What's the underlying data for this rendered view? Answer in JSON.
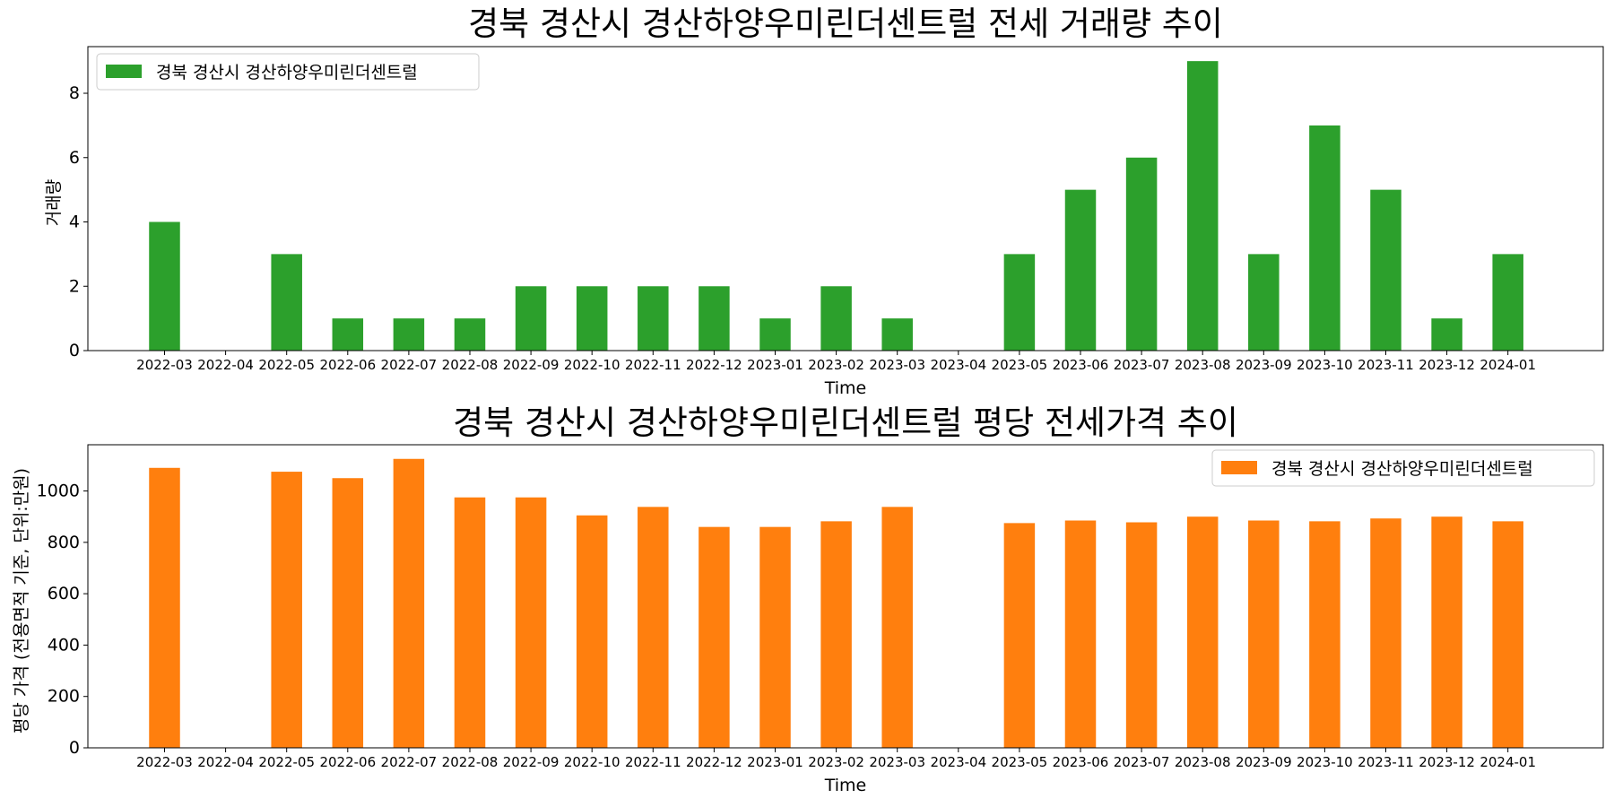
{
  "chart_data": [
    {
      "type": "bar",
      "title": "경북 경산시 경산하양우미린더센트럴 전세 거래량 추이",
      "xlabel": "Time",
      "ylabel": "거래량",
      "categories": [
        "2022-03",
        "2022-04",
        "2022-05",
        "2022-06",
        "2022-07",
        "2022-08",
        "2022-09",
        "2022-10",
        "2022-11",
        "2022-12",
        "2023-01",
        "2023-02",
        "2023-03",
        "2023-04",
        "2023-05",
        "2023-06",
        "2023-07",
        "2023-08",
        "2023-09",
        "2023-10",
        "2023-11",
        "2023-12",
        "2024-01"
      ],
      "series": [
        {
          "name": "경북 경산시 경산하양우미린더센트럴",
          "color": "#2ca02c",
          "values": [
            4,
            0,
            3,
            1,
            1,
            1,
            2,
            2,
            2,
            2,
            1,
            2,
            1,
            0,
            3,
            5,
            6,
            9,
            3,
            7,
            5,
            1,
            3
          ]
        }
      ],
      "ylim": [
        0,
        9.45
      ],
      "yticks": [
        0,
        2,
        4,
        6,
        8
      ],
      "grid": false,
      "legend_position": "upper-left"
    },
    {
      "type": "bar",
      "title": "경북 경산시 경산하양우미린더센트럴 평당 전세가격 추이",
      "xlabel": "Time",
      "ylabel": "평당 가격 (전용면적 기준, 단위:만원)",
      "categories": [
        "2022-03",
        "2022-04",
        "2022-05",
        "2022-06",
        "2022-07",
        "2022-08",
        "2022-09",
        "2022-10",
        "2022-11",
        "2022-12",
        "2023-01",
        "2023-02",
        "2023-03",
        "2023-04",
        "2023-05",
        "2023-06",
        "2023-07",
        "2023-08",
        "2023-09",
        "2023-10",
        "2023-11",
        "2023-12",
        "2024-01"
      ],
      "series": [
        {
          "name": "경북 경산시 경산하양우미린더센트럴",
          "color": "#ff7f0e",
          "values": [
            1090,
            0,
            1075,
            1050,
            1125,
            975,
            975,
            905,
            938,
            860,
            860,
            882,
            938,
            0,
            875,
            885,
            878,
            900,
            885,
            882,
            893,
            900,
            882
          ]
        }
      ],
      "ylim": [
        0,
        1180
      ],
      "yticks": [
        0,
        200,
        400,
        600,
        800,
        1000
      ],
      "grid": false,
      "legend_position": "upper-right"
    }
  ]
}
